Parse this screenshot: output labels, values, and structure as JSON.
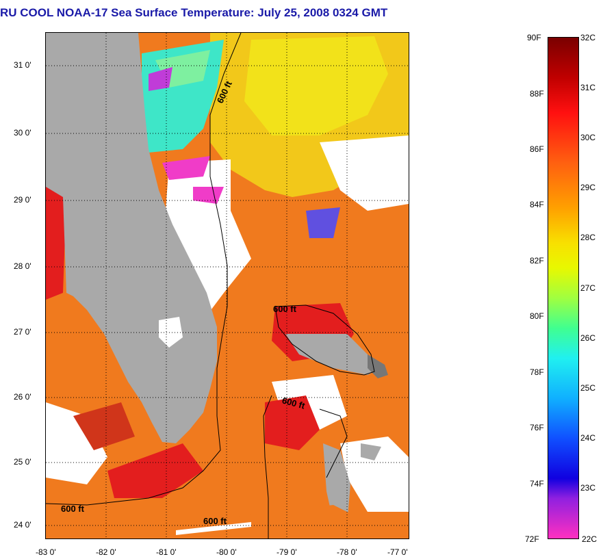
{
  "title": "RU COOL  NOAA-17  Sea Surface Temperature:  July 25, 2008 0324 GMT",
  "map": {
    "x_ticks": [
      "-83 0'",
      "-82 0'",
      "-81 0'",
      "-80 0'",
      "-79 0'",
      "-78 0'",
      "-77 0'"
    ],
    "y_ticks": [
      "31 0'",
      "30 0'",
      "29 0'",
      "28 0'",
      "27 0'",
      "26 0'",
      "25 0'",
      "24 0'"
    ],
    "contour_labels": [
      "600 ft",
      "600 ft",
      "600 ft",
      "600 ft",
      "600 ft"
    ],
    "colors": {
      "land": "#a9a9a9",
      "cloud": "#ffffff",
      "warm": "#f07a1e",
      "hot": "#e31e1e",
      "yellow": "#f2e21a",
      "cyan": "#3ee6c8",
      "magenta": "#f03cc8"
    }
  },
  "colorbar": {
    "fahrenheit": [
      "90F",
      "88F",
      "86F",
      "84F",
      "82F",
      "80F",
      "78F",
      "76F",
      "74F",
      "72F"
    ],
    "celsius": [
      "32C",
      "31C",
      "30C",
      "29C",
      "28C",
      "27C",
      "26C",
      "25C",
      "24C",
      "23C",
      "22C"
    ],
    "range_f": [
      72,
      90
    ],
    "range_c": [
      22,
      32
    ]
  }
}
